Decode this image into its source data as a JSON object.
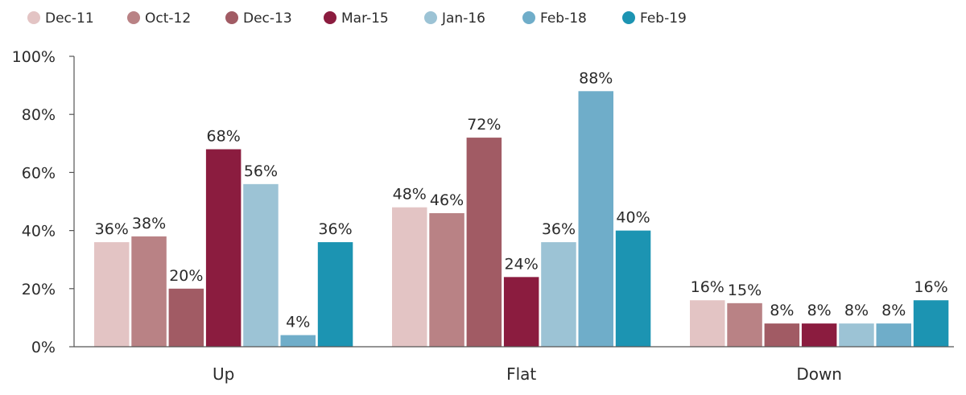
{
  "chart_data": {
    "type": "bar",
    "categories": [
      "Up",
      "Flat",
      "Down"
    ],
    "series": [
      {
        "name": "Dec-11",
        "color": "#e3c4c4",
        "values": [
          36,
          48,
          16
        ]
      },
      {
        "name": "Oct-12",
        "color": "#b98285",
        "values": [
          38,
          46,
          15
        ]
      },
      {
        "name": "Dec-13",
        "color": "#a15b64",
        "values": [
          20,
          72,
          8
        ]
      },
      {
        "name": "Mar-15",
        "color": "#8b1c3f",
        "values": [
          68,
          24,
          8
        ]
      },
      {
        "name": "Jan-16",
        "color": "#9cc3d5",
        "values": [
          56,
          36,
          8
        ]
      },
      {
        "name": "Feb-18",
        "color": "#6fadc9",
        "values": [
          4,
          88,
          8
        ]
      },
      {
        "name": "Feb-19",
        "color": "#1c94b2",
        "values": [
          36,
          40,
          16
        ]
      }
    ],
    "yticks": [
      "0%",
      "20%",
      "40%",
      "60%",
      "80%",
      "100%"
    ],
    "ylim": [
      0,
      100
    ],
    "value_suffix": "%",
    "legend_position": "top-left",
    "grid": false
  }
}
